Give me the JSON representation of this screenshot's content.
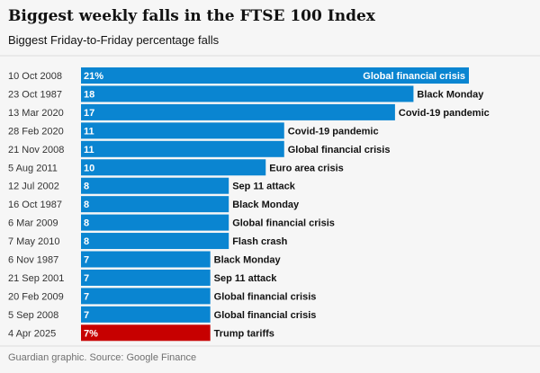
{
  "header": {
    "title": "Biggest weekly falls in the FTSE 100 Index",
    "subtitle": "Biggest Friday-to-Friday percentage falls"
  },
  "footer": {
    "source": "Guardian graphic. Source: Google Finance"
  },
  "colors": {
    "bar": "#0a85d1",
    "highlight": "#c70000",
    "divider": "#dcdcdc",
    "background": "#f6f6f6"
  },
  "chart_data": {
    "type": "bar",
    "orientation": "horizontal",
    "grid": false,
    "categories": [
      "10 Oct 2008",
      "23 Oct 1987",
      "13 Mar 2020",
      "28 Feb 2020",
      "21 Nov 2008",
      "5 Aug 2011",
      "12 Jul 2002",
      "16 Oct 1987",
      "6 Mar 2009",
      "7 May 2010",
      "6 Nov 1987",
      "21 Sep 2001",
      "20 Feb 2009",
      "5 Sep 2008",
      "4 Apr 2025"
    ],
    "values": [
      21,
      18,
      17,
      11,
      11,
      10,
      8,
      8,
      8,
      8,
      7,
      7,
      7,
      7,
      7
    ],
    "value_labels": [
      "21%",
      "18",
      "17",
      "11",
      "11",
      "10",
      "8",
      "8",
      "8",
      "8",
      "7",
      "7",
      "7",
      "7",
      "7%"
    ],
    "annotations": [
      "Global financial crisis",
      "Black Monday",
      "Covid-19 pandemic",
      "Covid-19 pandemic",
      "Global financial crisis",
      "Euro area crisis",
      "Sep 11 attack",
      "Black Monday",
      "Global financial crisis",
      "Flash crash",
      "Black Monday",
      "Sep 11 attack",
      "Global financial crisis",
      "Global financial crisis",
      "Trump tariffs"
    ],
    "highlighted_index": 14,
    "xlim": [
      0,
      21
    ]
  }
}
